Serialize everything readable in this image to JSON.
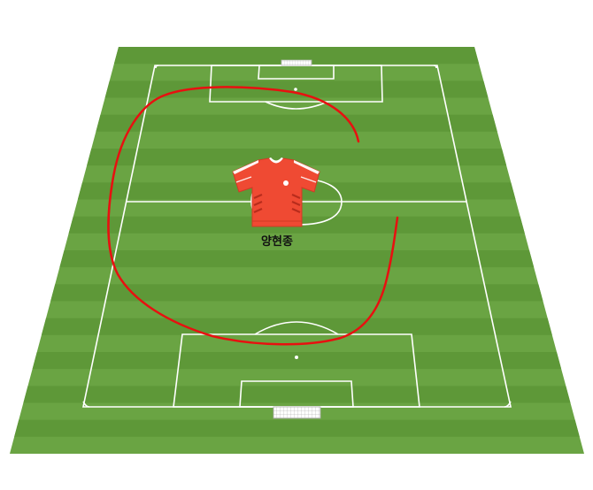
{
  "pitch": {
    "colors": {
      "stripe_light": "#6aa443",
      "stripe_dark": "#5e9838",
      "lines": "#ffffff",
      "run_path": "#e81010"
    }
  },
  "player": {
    "name": "양현종",
    "shirt_color": "#ef4a33",
    "icon": "jersey-icon"
  }
}
